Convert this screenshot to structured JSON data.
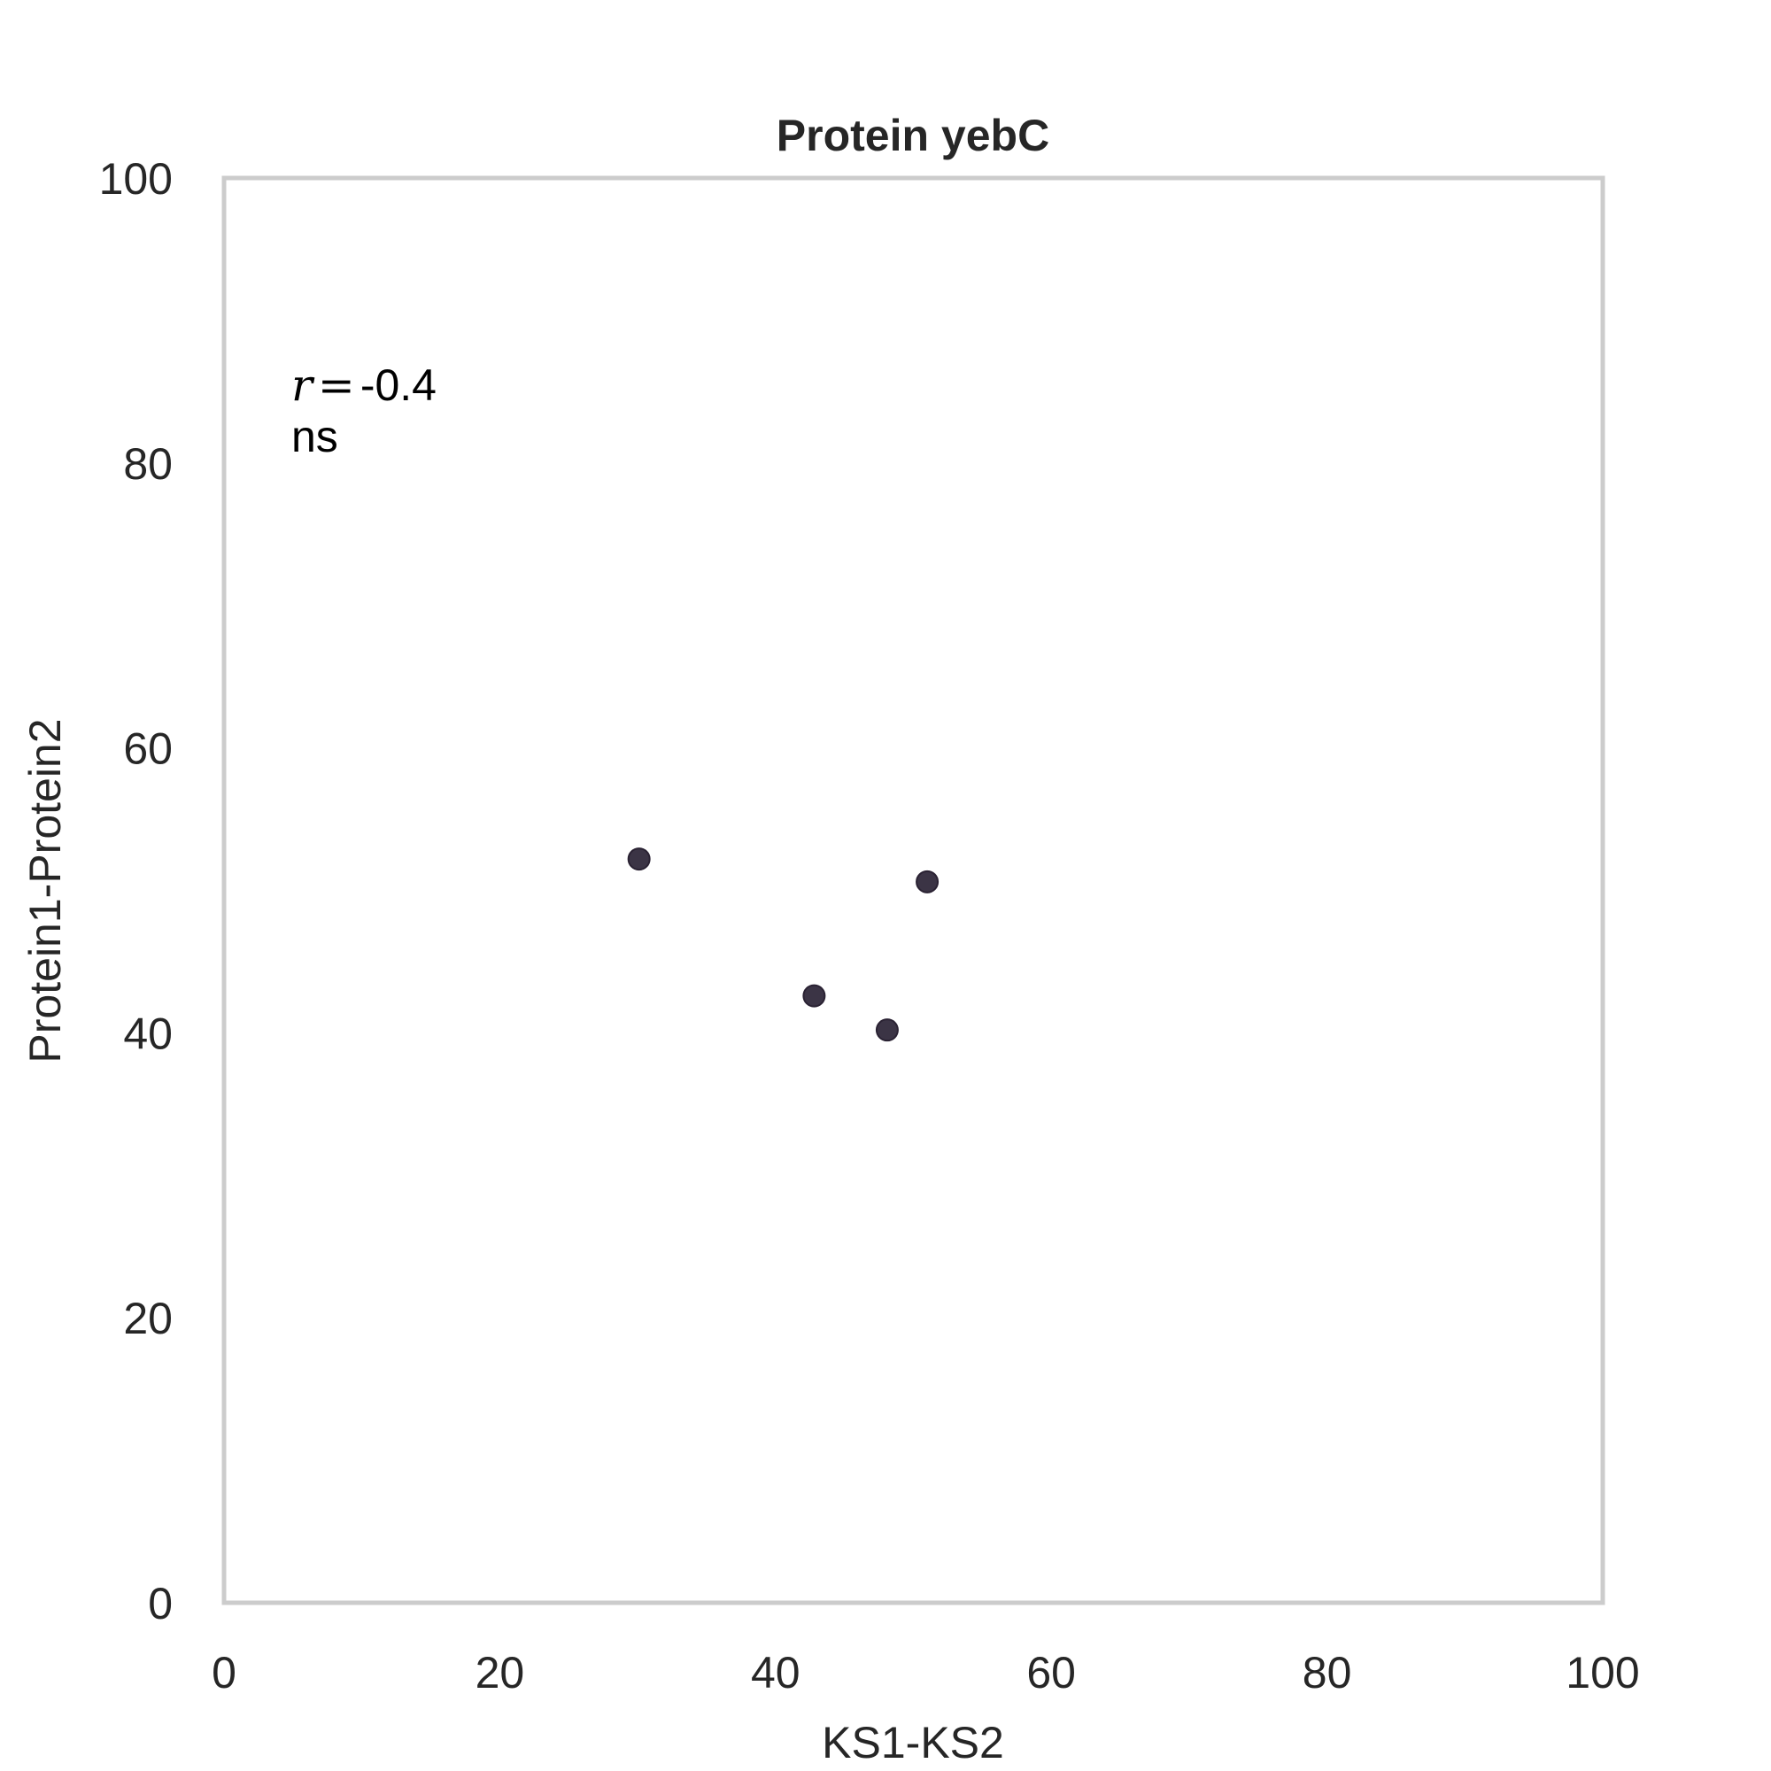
{
  "chart_data": {
    "type": "scatter",
    "title": "Protein yebC",
    "xlabel": "KS1-KS2",
    "ylabel": "Protein1-Protein2",
    "xlim": [
      0,
      100
    ],
    "ylim": [
      0,
      100
    ],
    "xticks": [
      0,
      20,
      40,
      60,
      80,
      100
    ],
    "yticks": [
      0,
      20,
      40,
      60,
      80,
      100
    ],
    "grid": false,
    "series": [
      {
        "points": [
          {
            "x": 30.1,
            "y": 52.2
          },
          {
            "x": 42.8,
            "y": 42.6
          },
          {
            "x": 48.1,
            "y": 40.2
          },
          {
            "x": 51.0,
            "y": 50.6
          }
        ],
        "color": "#3b3445"
      }
    ],
    "annotation": {
      "r_symbol": "r",
      "equals": "=",
      "r_value": "-0.4",
      "significance": "ns"
    },
    "frame_color": "#cccccc"
  }
}
